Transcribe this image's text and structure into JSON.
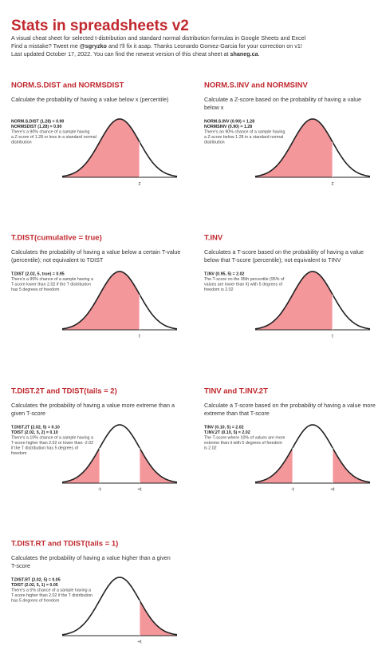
{
  "header": {
    "title": "Stats in spreadsheets v2",
    "lines": [
      [
        "A visual cheat sheet for selected t-distribution and standard normal distribution formulas in Google Sheets and Excel"
      ],
      [
        "Find a mistake? Tweet me ",
        "@sgryzko",
        " and I'll fix it asap. Thanks Leonardo Gomez-Garcia for your correction on v1!"
      ],
      [
        "Last updated October 17, 2022. You can find the newest version of this cheat sheet at ",
        "shaneg.ca",
        "."
      ]
    ]
  },
  "sections": [
    {
      "title": "NORM.S.DIST and NORMSDIST",
      "description": [
        "Calculate the probability of having a value below x (percentile)"
      ],
      "formulas": [
        "NORM.S.DIST (1.28) = 0.90",
        "NORMSDIST (1.28) = 0.90"
      ],
      "note": [
        "There's a 90% chance of a sample having",
        "a Z-score of 1.28 or less in a standard normal",
        "distribution"
      ],
      "labels": [
        "z"
      ]
    },
    {
      "title": "NORM.S.INV and NORMSINV",
      "description": [
        "Calculate a Z-score based on the probability of having a value",
        "below x"
      ],
      "formulas": [
        "NORM.S.INV (0.90) = 1.28",
        "NORMSINV (0.90) = 1.28"
      ],
      "note": [
        "There's an 90% chance of a sample having",
        "a Z-score below 1.28 in a standard normal",
        "distribution"
      ],
      "labels": [
        "z"
      ]
    },
    {
      "title": "T.DIST(cumulative = true)",
      "description": [
        "Calculates the probability of having a value below a certain T-value",
        "(percentile); not equivalent to TDIST"
      ],
      "formulas": [
        "T.DIST (2.02, 5, true) = 0.95"
      ],
      "note": [
        "There's a 95% chance of a sample having a",
        "T-score lower than 2.02 if the T distribution",
        "has 5 degrees of freedom"
      ],
      "labels": [
        "t"
      ]
    },
    {
      "title": "T.INV",
      "description": [
        "Calculates a T-score based on the probability of having a value",
        "below that T-score (percentile); not equivalent to TINV"
      ],
      "formulas": [
        "T.INV (0.95, 5) = 2.02"
      ],
      "note": [
        "The T-score on the 95th percentile (95% of",
        "values are lower than it) with 5 degrees of",
        "freedom is 2.02"
      ],
      "labels": [
        "t"
      ]
    },
    {
      "title": "T.DIST.2T and TDIST(tails = 2)",
      "description": [
        "Calculates the probability of having a value more extreme than a",
        "given T-score"
      ],
      "formulas": [
        "T.DIST.2T (2.02, 5) = 0.10",
        "TDIST (2.02, 5, 2) = 0.10"
      ],
      "note": [
        "There's a 10% chance of a sample having a",
        "T-score higher than 2.02 or lower than -2.02",
        "if the T distribution has 5 degrees of",
        "freedom"
      ],
      "labels": [
        "-t",
        "+t"
      ]
    },
    {
      "title": "TINV and T.INV.2T",
      "description": [
        "Calculate a T-score based on the probability of having a value more",
        "extreme than that T-score"
      ],
      "formulas": [
        "TINV (0.10, 5) = 2.02",
        "T.INV.2T (0.10, 5) = 2.02"
      ],
      "note": [
        "The T-score where 10% of values are more",
        "extreme than it with 5 degrees of freedom",
        "is 2.02"
      ],
      "labels": [
        "-t",
        "+t"
      ]
    },
    {
      "title": "T.DIST.RT and TDIST(tails = 1)",
      "description": [
        "Calculates the probability of having a value higher than a given",
        "T-score"
      ],
      "formulas": [
        "T.DIST.RT (2.02, 5) = 0.05",
        "TDIST (2.02, 5, 1) = 0.05"
      ],
      "note": [
        "There's a 5% chance of a sample having a",
        "T-score higher than 2.02 if the T distribution",
        "has 5 degrees of freedom"
      ],
      "labels": [
        "+t"
      ]
    }
  ]
}
